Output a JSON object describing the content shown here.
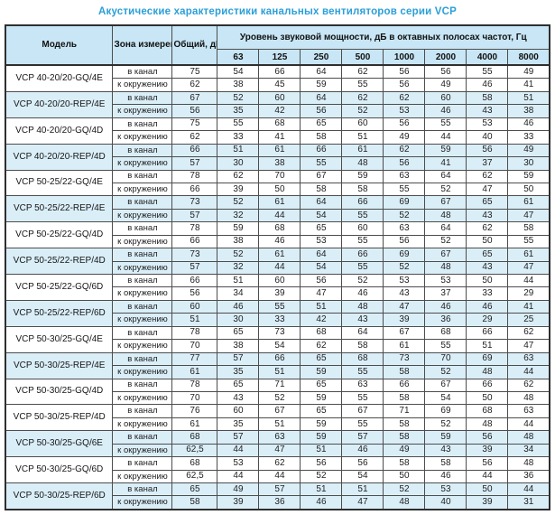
{
  "title": "Акустические характеристики канальных вентиляторов  серии VCP",
  "colors": {
    "accent": "#2b9fd8",
    "header_bg": "#c8e6f5",
    "shaded_row_bg": "#daeef8",
    "border": "#4d4d4d"
  },
  "table": {
    "headers": {
      "model": "Модель",
      "zone": "Зона измерения",
      "total": "Общий, дБА",
      "octave_group": "Уровень звуковой мощности, дБ в октавных полосах частот, Гц",
      "frequencies": [
        "63",
        "125",
        "250",
        "500",
        "1000",
        "2000",
        "4000",
        "8000"
      ]
    },
    "zone_labels": {
      "duct": "в канал",
      "ambient": "к окружению"
    },
    "rows": [
      {
        "model": "VCP 40-20/20-GQ/4E",
        "shaded": false,
        "duct": {
          "total": "75",
          "levels": [
            54,
            66,
            64,
            62,
            56,
            56,
            55,
            49
          ]
        },
        "ambient": {
          "total": "62",
          "levels": [
            38,
            45,
            59,
            55,
            56,
            49,
            46,
            41
          ]
        }
      },
      {
        "model": "VCP 40-20/20-REP/4E",
        "shaded": true,
        "duct": {
          "total": "67",
          "levels": [
            52,
            60,
            64,
            62,
            62,
            60,
            58,
            51
          ]
        },
        "ambient": {
          "total": "56",
          "levels": [
            35,
            42,
            56,
            52,
            53,
            46,
            43,
            38
          ]
        }
      },
      {
        "model": "VCP 40-20/20-GQ/4D",
        "shaded": false,
        "duct": {
          "total": "75",
          "levels": [
            55,
            68,
            65,
            60,
            56,
            55,
            53,
            46
          ]
        },
        "ambient": {
          "total": "62",
          "levels": [
            33,
            41,
            58,
            51,
            49,
            44,
            40,
            33
          ]
        }
      },
      {
        "model": "VCP 40-20/20-REP/4D",
        "shaded": true,
        "duct": {
          "total": "66",
          "levels": [
            51,
            61,
            66,
            61,
            62,
            59,
            56,
            49
          ]
        },
        "ambient": {
          "total": "57",
          "levels": [
            30,
            38,
            55,
            48,
            56,
            41,
            37,
            30
          ]
        }
      },
      {
        "model": "VCP 50-25/22-GQ/4E",
        "shaded": false,
        "duct": {
          "total": "78",
          "levels": [
            62,
            70,
            67,
            59,
            63,
            64,
            62,
            59
          ]
        },
        "ambient": {
          "total": "66",
          "levels": [
            39,
            50,
            58,
            58,
            55,
            52,
            47,
            50
          ]
        }
      },
      {
        "model": "VCP 50-25/22-REP/4E",
        "shaded": true,
        "duct": {
          "total": "73",
          "levels": [
            52,
            61,
            64,
            66,
            69,
            67,
            65,
            61
          ]
        },
        "ambient": {
          "total": "57",
          "levels": [
            32,
            44,
            54,
            55,
            52,
            48,
            43,
            47
          ]
        }
      },
      {
        "model": "VCP 50-25/22-GQ/4D",
        "shaded": false,
        "duct": {
          "total": "78",
          "levels": [
            59,
            68,
            65,
            60,
            63,
            64,
            62,
            58
          ]
        },
        "ambient": {
          "total": "66",
          "levels": [
            38,
            46,
            53,
            55,
            56,
            52,
            50,
            55
          ]
        }
      },
      {
        "model": "VCP 50-25/22-REP/4D",
        "shaded": true,
        "duct": {
          "total": "73",
          "levels": [
            52,
            61,
            64,
            66,
            69,
            67,
            65,
            61
          ]
        },
        "ambient": {
          "total": "57",
          "levels": [
            32,
            44,
            54,
            55,
            52,
            48,
            43,
            47
          ]
        }
      },
      {
        "model": "VCP 50-25/22-GQ/6D",
        "shaded": false,
        "duct": {
          "total": "66",
          "levels": [
            51,
            60,
            56,
            52,
            53,
            53,
            50,
            44
          ]
        },
        "ambient": {
          "total": "56",
          "levels": [
            34,
            39,
            47,
            46,
            43,
            37,
            33,
            29
          ]
        }
      },
      {
        "model": "VCP 50-25/22-REP/6D",
        "shaded": true,
        "duct": {
          "total": "60",
          "levels": [
            46,
            55,
            51,
            48,
            47,
            46,
            46,
            41
          ]
        },
        "ambient": {
          "total": "51",
          "levels": [
            30,
            33,
            42,
            43,
            39,
            36,
            29,
            25
          ]
        }
      },
      {
        "model": "VCP 50-30/25-GQ/4E",
        "shaded": false,
        "duct": {
          "total": "78",
          "levels": [
            65,
            73,
            68,
            64,
            67,
            68,
            66,
            62
          ]
        },
        "ambient": {
          "total": "70",
          "levels": [
            38,
            54,
            62,
            58,
            61,
            55,
            51,
            47
          ]
        }
      },
      {
        "model": "VCP 50-30/25-REP/4E",
        "shaded": true,
        "duct": {
          "total": "77",
          "levels": [
            57,
            66,
            65,
            68,
            73,
            70,
            69,
            63
          ]
        },
        "ambient": {
          "total": "61",
          "levels": [
            35,
            51,
            59,
            55,
            58,
            52,
            48,
            44
          ]
        }
      },
      {
        "model": "VCP 50-30/25-GQ/4D",
        "shaded": false,
        "duct": {
          "total": "78",
          "levels": [
            65,
            71,
            65,
            63,
            66,
            67,
            66,
            62
          ]
        },
        "ambient": {
          "total": "70",
          "levels": [
            43,
            52,
            59,
            55,
            58,
            54,
            50,
            48
          ]
        }
      },
      {
        "model": "VCP 50-30/25-REP/4D",
        "shaded": false,
        "duct": {
          "total": "76",
          "levels": [
            60,
            67,
            65,
            67,
            71,
            69,
            68,
            63
          ]
        },
        "ambient": {
          "total": "61",
          "levels": [
            35,
            51,
            59,
            55,
            58,
            52,
            48,
            44
          ]
        }
      },
      {
        "model": "VCP 50-30/25-GQ/6E",
        "shaded": true,
        "duct": {
          "total": "68",
          "levels": [
            57,
            63,
            59,
            57,
            58,
            59,
            56,
            48
          ]
        },
        "ambient": {
          "total": "62,5",
          "levels": [
            44,
            47,
            51,
            46,
            49,
            43,
            39,
            34
          ]
        }
      },
      {
        "model": "VCP 50-30/25-GQ/6D",
        "shaded": false,
        "duct": {
          "total": "68",
          "levels": [
            53,
            62,
            56,
            56,
            58,
            58,
            56,
            48
          ]
        },
        "ambient": {
          "total": "62,5",
          "levels": [
            44,
            44,
            52,
            54,
            50,
            46,
            44,
            36
          ]
        }
      },
      {
        "model": "VCP 50-30/25-REP/6D",
        "shaded": true,
        "duct": {
          "total": "65",
          "levels": [
            49,
            57,
            51,
            51,
            52,
            53,
            50,
            44
          ]
        },
        "ambient": {
          "total": "58",
          "levels": [
            39,
            36,
            46,
            47,
            48,
            40,
            39,
            31
          ]
        }
      }
    ]
  }
}
